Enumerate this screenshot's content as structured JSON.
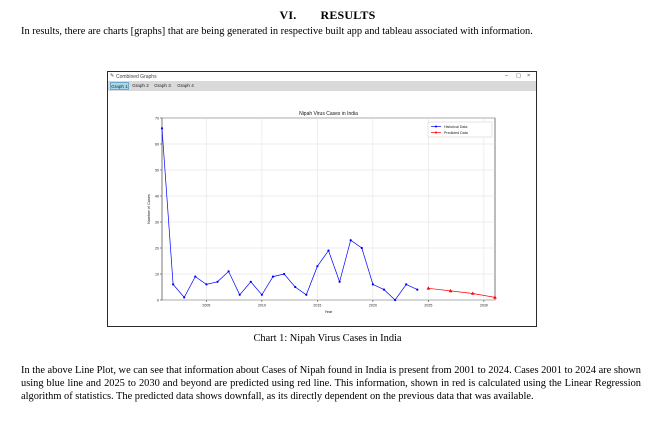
{
  "section": {
    "number": "VI.",
    "title": "RESULTS"
  },
  "intro": "In results, there are charts [graphs] that are being generated in respective built app and tableau associated with information.",
  "window": {
    "title": "Combined Graphs",
    "controls": [
      "–",
      "▢",
      "×"
    ],
    "tabs": [
      {
        "label": "Graph 1",
        "active": true
      },
      {
        "label": "Graph 2",
        "active": false
      },
      {
        "label": "Graph 3",
        "active": false
      },
      {
        "label": "Graph 4",
        "active": false
      }
    ]
  },
  "chart_data": {
    "type": "line",
    "title": "Nipah Virus Cases in India",
    "xlabel": "Year",
    "ylabel": "Number of Cases",
    "xlim": [
      2001,
      2031
    ],
    "ylim": [
      0,
      70
    ],
    "xticks": [
      2005,
      2010,
      2015,
      2020,
      2025,
      2030
    ],
    "yticks": [
      0,
      10,
      20,
      30,
      40,
      50,
      60,
      70
    ],
    "grid": true,
    "legend": "top-right",
    "series": [
      {
        "name": "Historical Data",
        "color": "#0000ff",
        "marker": "dot",
        "x": [
          2001,
          2002,
          2003,
          2004,
          2005,
          2006,
          2007,
          2008,
          2009,
          2010,
          2011,
          2012,
          2013,
          2014,
          2015,
          2016,
          2017,
          2018,
          2019,
          2020,
          2021,
          2022,
          2023,
          2024
        ],
        "y": [
          66,
          6,
          1,
          9,
          6,
          7,
          11,
          2,
          7,
          2,
          9,
          10,
          5,
          2,
          13,
          19,
          7,
          23,
          20,
          6,
          4,
          0,
          6,
          4
        ]
      },
      {
        "name": "Predicted Data",
        "color": "#ff0000",
        "marker": "triangle",
        "x": [
          2025,
          2027,
          2029,
          2031
        ],
        "y": [
          4.5,
          3.5,
          2.5,
          1
        ]
      }
    ]
  },
  "caption": "Chart 1: Nipah Virus Cases in India",
  "discussion": "In the above Line Plot, we can see that information about Cases of Nipah found in India is present from 2001 to 2024. Cases 2001 to 2024 are shown using blue line and 2025 to 2030 and beyond are predicted using red line. This information, shown in red is calculated using the Linear Regression algorithm of statistics. The predicted data shows downfall, as its directly dependent on the previous data that was available."
}
